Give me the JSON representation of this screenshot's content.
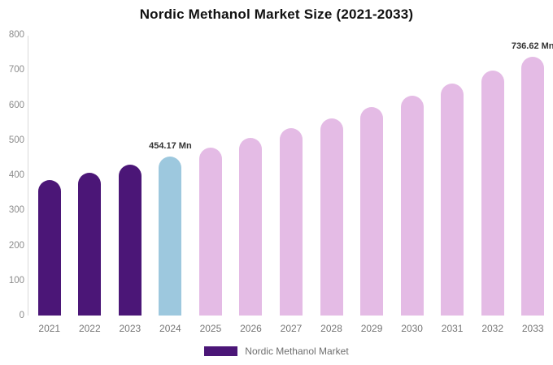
{
  "chart": {
    "title": "Nordic Methanol Market Size (2021-2033)"
  },
  "legend": {
    "label": "Nordic Methanol Market",
    "swatch_color": "#4B1677"
  },
  "colors": {
    "historical_bar": "#4B1677",
    "current_year_bar": "#9DC8DE",
    "forecast_bar": "#E4BBE5",
    "axis_line": "#D9D9D9",
    "tick_text": "#8C8C8C",
    "annotation_text": "#333333"
  },
  "chart_data": {
    "type": "bar",
    "title": "Nordic Methanol Market Size (2021-2033)",
    "series_name": "Nordic Methanol Market",
    "unit": "Mn",
    "categories": [
      "2021",
      "2022",
      "2023",
      "2024",
      "2025",
      "2026",
      "2027",
      "2028",
      "2029",
      "2030",
      "2031",
      "2032",
      "2033"
    ],
    "values": [
      386.6,
      407.9,
      430.4,
      454.17,
      479.2,
      505.6,
      533.5,
      563.0,
      594.1,
      626.9,
      661.5,
      698.0,
      736.62
    ],
    "bar_colors": [
      "#4B1677",
      "#4B1677",
      "#4B1677",
      "#9DC8DE",
      "#E4BBE5",
      "#E4BBE5",
      "#E4BBE5",
      "#E4BBE5",
      "#E4BBE5",
      "#E4BBE5",
      "#E4BBE5",
      "#E4BBE5",
      "#E4BBE5"
    ],
    "annotations": [
      {
        "category": "2024",
        "text": "454.17 Mn"
      },
      {
        "category": "2033",
        "text": "736.62 Mn"
      }
    ],
    "xlabel": "",
    "ylabel": "",
    "ylim": [
      0,
      800
    ],
    "y_ticks": [
      0,
      100,
      200,
      300,
      400,
      500,
      600,
      700,
      800
    ],
    "grid": false,
    "legend_position": "bottom",
    "legend_entries": [
      "Nordic Methanol Market"
    ]
  }
}
